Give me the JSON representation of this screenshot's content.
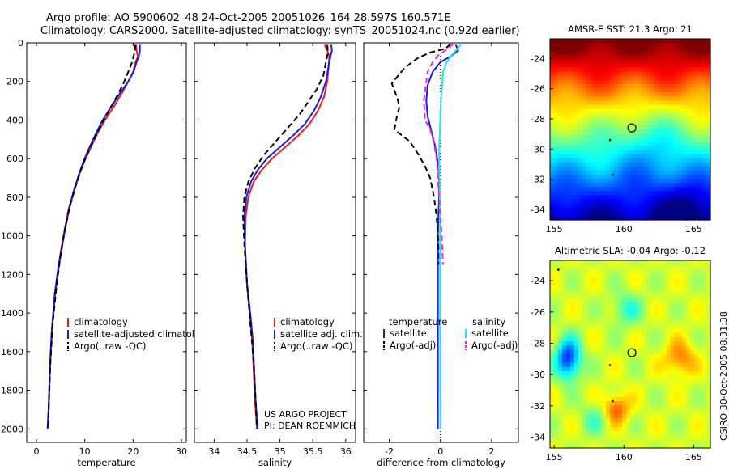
{
  "title": {
    "line1": "Argo profile: AO 5900602_48 24-Oct-2005 20051026_164 28.597S 160.571E",
    "line2": "Climatology: CARS2000. Satellite-adjusted climatology: synTS_20051024.nc (0.92d earlier)"
  },
  "credit": "CSIRO 30-Oct-2005 08:31:38",
  "project": {
    "line1": "US ARGO PROJECT",
    "line2": "PI: DEAN ROEMMICH"
  },
  "colors": {
    "clim": "#e82020",
    "sat": "#1c1cdc",
    "argo": "#000000",
    "sal_sat": "#22e8e8",
    "sal_argo": "#e828e0"
  },
  "chart_data": [
    {
      "type": "line",
      "id": "temperature",
      "xlabel": "temperature",
      "ylabel": "",
      "xlim": [
        -2,
        31
      ],
      "ylim": [
        2070,
        0
      ],
      "y_reversed": true,
      "xticks": [
        0,
        10,
        20,
        30
      ],
      "yticks": [
        0,
        200,
        400,
        600,
        800,
        1000,
        1200,
        1400,
        1600,
        1800,
        2000
      ],
      "legend": [
        "climatology",
        "satellite-adjusted climatology",
        "Argo(..raw -QC)"
      ],
      "series": [
        {
          "name": "climatology",
          "color_key": "clim",
          "dash": false,
          "x": [
            20.6,
            20.7,
            21.0,
            20.5,
            20.0,
            19.0,
            17.7,
            16.0,
            14.2,
            12.6,
            11.3,
            10.0,
            8.9,
            7.9,
            6.8,
            5.7,
            4.7,
            3.9,
            3.2,
            2.8,
            2.55,
            2.35
          ],
          "y": [
            10,
            40,
            70,
            100,
            150,
            200,
            260,
            330,
            400,
            470,
            540,
            610,
            680,
            760,
            860,
            1000,
            1150,
            1300,
            1500,
            1700,
            1900,
            2000
          ]
        },
        {
          "name": "satellite-adjusted climatology",
          "color_key": "sat",
          "dash": false,
          "x": [
            21.4,
            21.4,
            21.2,
            20.7,
            20.1,
            19.0,
            17.3,
            15.5,
            13.7,
            12.3,
            11.0,
            9.8,
            8.8,
            7.8,
            6.7,
            5.6,
            4.6,
            3.8,
            3.15,
            2.75,
            2.5,
            2.3
          ],
          "y": [
            10,
            40,
            70,
            100,
            150,
            200,
            260,
            330,
            400,
            470,
            540,
            610,
            680,
            760,
            860,
            1000,
            1150,
            1300,
            1500,
            1700,
            1900,
            2000
          ]
        },
        {
          "name": "Argo(..raw -QC)",
          "color_key": "argo",
          "dash": true,
          "x": [
            20.5,
            20.3,
            19.8,
            19.0,
            18.0,
            16.6,
            15.0,
            13.5,
            12.1,
            10.8,
            9.6,
            8.8,
            8.0,
            7.0,
            6.0,
            5.0,
            4.2,
            3.4,
            2.9,
            2.6,
            2.4
          ],
          "y": [
            10,
            50,
            100,
            150,
            210,
            280,
            350,
            420,
            490,
            560,
            630,
            690,
            750,
            840,
            950,
            1100,
            1250,
            1450,
            1650,
            1850,
            2000
          ]
        }
      ]
    },
    {
      "type": "line",
      "id": "salinity",
      "xlabel": "salinity",
      "ylabel": "",
      "xlim": [
        33.7,
        36.15
      ],
      "ylim": [
        2070,
        0
      ],
      "y_reversed": true,
      "xticks": [
        34,
        34.5,
        35,
        35.5,
        36
      ],
      "legend": [
        "climatology",
        "satellite adj. clim.",
        "Argo(..raw -QC)"
      ],
      "series": [
        {
          "name": "climatology",
          "color_key": "clim",
          "dash": false,
          "x": [
            35.68,
            35.72,
            35.75,
            35.74,
            35.72,
            35.67,
            35.58,
            35.45,
            35.28,
            35.08,
            34.88,
            34.72,
            34.6,
            34.52,
            34.48,
            34.47,
            34.5,
            34.54,
            34.58,
            34.6,
            34.62,
            34.64,
            34.65
          ],
          "y": [
            10,
            40,
            70,
            120,
            200,
            280,
            350,
            420,
            480,
            540,
            600,
            660,
            720,
            800,
            900,
            1050,
            1250,
            1400,
            1550,
            1700,
            1850,
            1950,
            2000
          ]
        },
        {
          "name": "satellite adj. clim.",
          "color_key": "sat",
          "dash": false,
          "x": [
            35.78,
            35.79,
            35.77,
            35.74,
            35.7,
            35.62,
            35.52,
            35.38,
            35.2,
            35.0,
            34.8,
            34.66,
            34.56,
            34.49,
            34.46,
            34.47,
            34.5,
            34.55,
            34.59,
            34.61,
            34.63,
            34.65,
            34.66
          ],
          "y": [
            10,
            40,
            70,
            120,
            200,
            280,
            350,
            420,
            480,
            540,
            600,
            660,
            720,
            800,
            900,
            1050,
            1250,
            1400,
            1550,
            1700,
            1850,
            1950,
            2000
          ]
        },
        {
          "name": "Argo(..raw -QC)",
          "color_key": "argo",
          "dash": true,
          "x": [
            35.72,
            35.73,
            35.7,
            35.66,
            35.56,
            35.44,
            35.3,
            35.12,
            34.94,
            34.76,
            34.62,
            34.52,
            34.46,
            34.44,
            34.46,
            34.5,
            34.55,
            34.6,
            34.63,
            34.65
          ],
          "y": [
            10,
            50,
            100,
            170,
            240,
            300,
            370,
            440,
            510,
            580,
            650,
            720,
            800,
            900,
            1050,
            1250,
            1450,
            1650,
            1850,
            2000
          ]
        }
      ]
    },
    {
      "type": "line",
      "id": "difference",
      "xlabel": "difference from climatology",
      "ylabel": "",
      "xlim": [
        -3,
        3.05
      ],
      "ylim": [
        2070,
        0
      ],
      "y_reversed": true,
      "xticks": [
        -2,
        0,
        2
      ],
      "legend_left_title": "temperature",
      "legend_right_title": "salinity",
      "legend": [
        "satellite",
        "Argo(-adj)",
        "satellite",
        "Argo(-adj)"
      ],
      "series": [
        {
          "name": "temperature satellite",
          "color_key": "sat",
          "dash": false,
          "x": [
            0.6,
            0.7,
            0.4,
            0.0,
            -0.3,
            -0.5,
            -0.55,
            -0.5,
            -0.35,
            -0.2,
            -0.1,
            -0.05,
            -0.05,
            -0.08,
            -0.1,
            -0.1,
            -0.1,
            -0.1,
            -0.1,
            -0.1
          ],
          "y": [
            10,
            40,
            70,
            100,
            150,
            220,
            300,
            380,
            460,
            540,
            620,
            700,
            800,
            900,
            1000,
            1200,
            1400,
            1600,
            1800,
            2000
          ]
        },
        {
          "name": "temperature Argo(-adj)",
          "color_key": "argo",
          "dash": true,
          "x": [
            0.4,
            0.2,
            -0.4,
            -0.9,
            -1.4,
            -1.9,
            -1.7,
            -1.6,
            -1.7,
            -1.8,
            -1.2,
            -0.9,
            -0.6,
            -0.4,
            -0.25,
            -0.15,
            -0.1,
            -0.05,
            -0.05
          ],
          "y": [
            5,
            30,
            50,
            80,
            130,
            210,
            280,
            330,
            380,
            450,
            510,
            570,
            640,
            700,
            800,
            900,
            1000,
            1100,
            1150
          ]
        },
        {
          "name": "salinity satellite",
          "color_key": "sal_sat",
          "dash": false,
          "x": [
            0.8,
            0.6,
            0.4,
            0.25,
            0.1,
            0.05,
            0.0,
            -0.02,
            -0.05,
            -0.05,
            -0.03,
            -0.02,
            -0.02,
            -0.02,
            -0.02,
            -0.01,
            -0.01,
            0.0
          ],
          "y": [
            10,
            40,
            70,
            100,
            150,
            250,
            350,
            450,
            550,
            650,
            750,
            850,
            1000,
            1200,
            1400,
            1600,
            1800,
            2000
          ]
        },
        {
          "name": "salinity Argo(-adj)",
          "color_key": "sal_argo",
          "dash": true,
          "x": [
            0.5,
            0.3,
            -0.05,
            -0.3,
            -0.5,
            -0.55,
            -0.65,
            -0.6,
            -0.4,
            -0.25,
            -0.15,
            -0.1,
            -0.05,
            0.0,
            0.05,
            0.1
          ],
          "y": [
            5,
            30,
            60,
            100,
            150,
            200,
            300,
            400,
            450,
            520,
            600,
            700,
            800,
            900,
            1000,
            1150
          ]
        }
      ]
    },
    {
      "type": "heatmap",
      "id": "sst-map",
      "title": "AMSR-E SST: 21.3 Argo: 21",
      "xlim": [
        154.7,
        166.2
      ],
      "ylim": [
        -34.7,
        -22.7
      ],
      "xticks": [
        155,
        160,
        165
      ],
      "yticks": [
        -24,
        -26,
        -28,
        -30,
        -32,
        -34
      ],
      "markers": [
        {
          "lon": 160.57,
          "lat": -28.6,
          "kind": "argo-circle"
        },
        {
          "lon": 155.3,
          "lat": -23.3,
          "kind": "dot"
        },
        {
          "lon": 159.0,
          "lat": -29.4,
          "kind": "dot"
        },
        {
          "lon": 159.2,
          "lat": -31.7,
          "kind": "dot"
        }
      ]
    },
    {
      "type": "heatmap",
      "id": "sla-map",
      "title": "Altimetric SLA: -0.04 Argo: -0.12",
      "xlim": [
        154.7,
        166.2
      ],
      "ylim": [
        -34.7,
        -22.7
      ],
      "xticks": [
        155,
        160,
        165
      ],
      "yticks": [
        -24,
        -26,
        -28,
        -30,
        -32,
        -34
      ],
      "markers": [
        {
          "lon": 160.57,
          "lat": -28.6,
          "kind": "argo-circle"
        },
        {
          "lon": 155.3,
          "lat": -23.3,
          "kind": "dot"
        },
        {
          "lon": 159.0,
          "lat": -29.4,
          "kind": "dot"
        },
        {
          "lon": 159.2,
          "lat": -31.7,
          "kind": "dot"
        }
      ]
    }
  ]
}
